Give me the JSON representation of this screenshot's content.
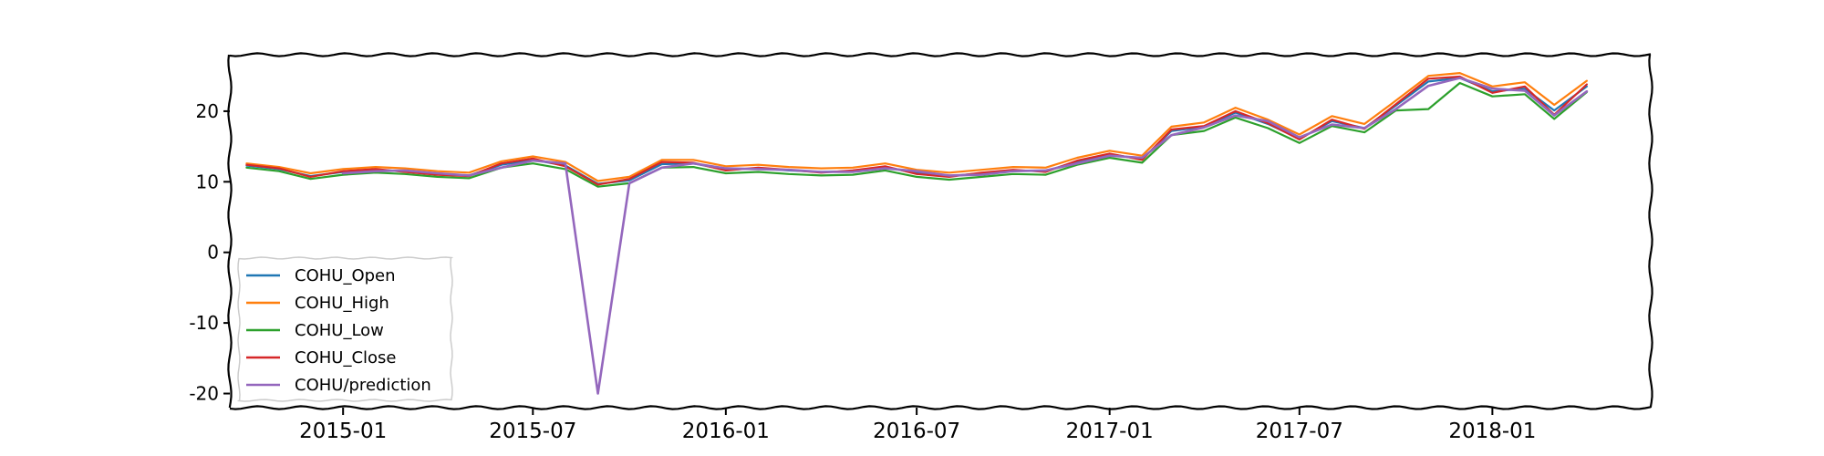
{
  "chart_data": {
    "type": "line",
    "title": "",
    "xlabel": "",
    "ylabel": "",
    "xlim": [
      "2014-09-15",
      "2018-06-01"
    ],
    "ylim": [
      -22,
      28
    ],
    "x_ticks": [
      "2015-01",
      "2015-07",
      "2016-01",
      "2016-07",
      "2017-01",
      "2017-07",
      "2018-01"
    ],
    "y_ticks": [
      -20,
      -10,
      0,
      10,
      20
    ],
    "grid": false,
    "legend_position": "lower-left",
    "x": [
      "2014-10-01",
      "2014-11-01",
      "2014-12-01",
      "2015-01-01",
      "2015-02-01",
      "2015-03-01",
      "2015-04-01",
      "2015-05-01",
      "2015-06-01",
      "2015-07-01",
      "2015-08-01",
      "2015-09-01",
      "2015-10-01",
      "2015-11-01",
      "2015-12-01",
      "2016-01-01",
      "2016-02-01",
      "2016-03-01",
      "2016-04-01",
      "2016-05-01",
      "2016-06-01",
      "2016-07-01",
      "2016-08-01",
      "2016-09-01",
      "2016-10-01",
      "2016-11-01",
      "2016-12-01",
      "2017-01-01",
      "2017-02-01",
      "2017-03-01",
      "2017-04-01",
      "2017-05-01",
      "2017-06-01",
      "2017-07-01",
      "2017-08-01",
      "2017-09-01",
      "2017-10-01",
      "2017-11-01",
      "2017-12-01",
      "2018-01-01",
      "2018-02-01",
      "2018-03-01",
      "2018-04-01"
    ],
    "series": [
      {
        "name": "COHU_Open",
        "color": "#1f77b4",
        "values": [
          12.3,
          11.8,
          10.8,
          11.4,
          11.7,
          11.5,
          11.1,
          10.9,
          12.4,
          13.1,
          12.3,
          9.7,
          10.2,
          12.5,
          12.6,
          11.7,
          11.9,
          11.6,
          11.4,
          11.5,
          12.1,
          11.2,
          10.8,
          11.2,
          11.6,
          11.5,
          12.9,
          13.9,
          13.2,
          17.2,
          17.8,
          19.8,
          18.2,
          16.1,
          18.6,
          17.6,
          20.8,
          24.2,
          24.7,
          22.8,
          23.2,
          20.1,
          23.5
        ]
      },
      {
        "name": "COHU_High",
        "color": "#ff7f0e",
        "values": [
          12.6,
          12.1,
          11.2,
          11.8,
          12.1,
          11.9,
          11.5,
          11.3,
          12.9,
          13.6,
          12.8,
          10.1,
          10.7,
          13.1,
          13.1,
          12.2,
          12.4,
          12.1,
          11.9,
          12.0,
          12.6,
          11.7,
          11.3,
          11.7,
          12.1,
          12.0,
          13.4,
          14.4,
          13.7,
          17.8,
          18.4,
          20.5,
          18.8,
          16.7,
          19.3,
          18.2,
          21.5,
          25.0,
          25.4,
          23.5,
          24.1,
          20.9,
          24.3
        ]
      },
      {
        "name": "COHU_Low",
        "color": "#2ca02c",
        "values": [
          12.0,
          11.5,
          10.4,
          11.0,
          11.3,
          11.1,
          10.7,
          10.5,
          12.0,
          12.6,
          11.8,
          9.3,
          9.8,
          12.0,
          12.1,
          11.2,
          11.4,
          11.1,
          10.9,
          11.0,
          11.6,
          10.7,
          10.3,
          10.7,
          11.1,
          11.0,
          12.4,
          13.4,
          12.7,
          16.6,
          17.2,
          19.1,
          17.6,
          15.5,
          17.9,
          17.0,
          20.1,
          20.3,
          24.0,
          22.1,
          22.4,
          18.9,
          22.7
        ]
      },
      {
        "name": "COHU_Close",
        "color": "#d62728",
        "values": [
          12.4,
          11.9,
          10.7,
          11.5,
          11.8,
          11.4,
          11.0,
          10.8,
          12.6,
          13.3,
          12.2,
          9.6,
          10.4,
          12.8,
          12.7,
          11.6,
          12.0,
          11.7,
          11.3,
          11.6,
          12.2,
          11.1,
          10.7,
          11.3,
          11.7,
          11.4,
          13.0,
          14.0,
          13.1,
          17.4,
          17.9,
          20.0,
          18.3,
          16.0,
          18.8,
          17.5,
          21.0,
          24.6,
          24.9,
          22.6,
          23.5,
          19.5,
          23.8
        ]
      },
      {
        "name": "COHU/prediction",
        "color": "#9467bd",
        "values": [
          null,
          null,
          null,
          11.2,
          11.5,
          11.6,
          11.2,
          10.9,
          12.0,
          13.0,
          12.6,
          -20.0,
          9.8,
          12.0,
          12.6,
          11.9,
          11.8,
          11.7,
          11.4,
          11.4,
          11.9,
          11.5,
          10.9,
          11.0,
          11.5,
          11.6,
          12.6,
          13.7,
          13.4,
          16.6,
          17.7,
          19.4,
          18.6,
          16.3,
          18.1,
          17.6,
          20.3,
          23.6,
          24.7,
          23.2,
          22.9,
          19.4,
          22.8
        ]
      }
    ]
  }
}
